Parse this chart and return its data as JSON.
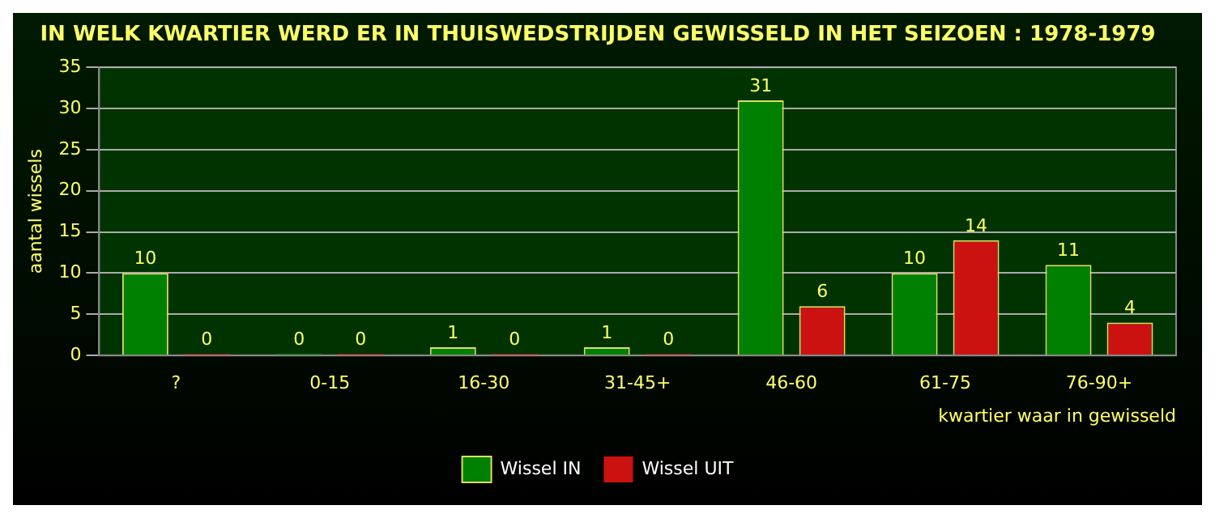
{
  "chart_data": {
    "type": "bar",
    "title": "IN WELK KWARTIER WERD ER IN THUISWEDSTRIJDEN GEWISSELD IN HET SEIZOEN : 1978-1979",
    "xlabel": "kwartier waar in gewisseld",
    "ylabel": "aantal wissels",
    "categories": [
      "?",
      "0-15",
      "16-30",
      "31-45+",
      "46-60",
      "61-75",
      "76-90+"
    ],
    "series": [
      {
        "name": "Wissel IN",
        "color": "#008000",
        "values": [
          10,
          0,
          1,
          1,
          31,
          10,
          11
        ]
      },
      {
        "name": "Wissel UIT",
        "color": "#cc1111",
        "values": [
          0,
          0,
          0,
          0,
          6,
          14,
          4
        ]
      }
    ],
    "ylim": [
      0,
      35
    ],
    "yticks": [
      0,
      5,
      10,
      15,
      20,
      25,
      30,
      35
    ],
    "grid": "y",
    "legend": "bottom",
    "data_labels": true
  }
}
